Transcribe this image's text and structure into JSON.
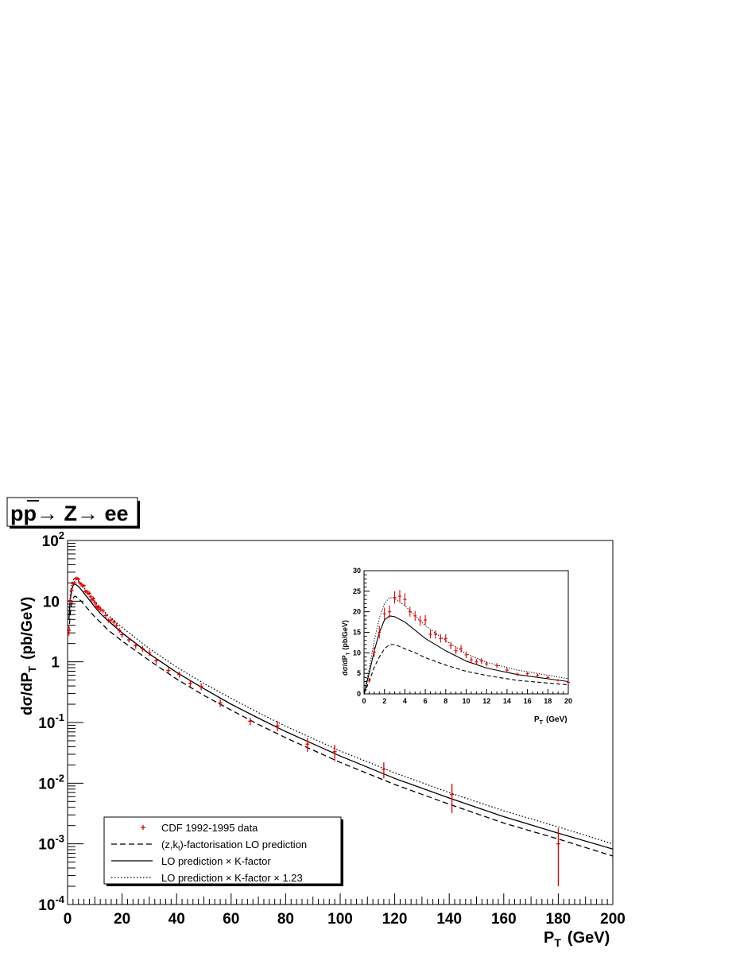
{
  "title": {
    "parts": [
      "p",
      "p",
      "→ Z",
      "→ ee"
    ]
  },
  "colors": {
    "data": "#e00000",
    "line": "#000000",
    "frame": "#000000"
  },
  "chart_data": [
    {
      "type": "scatter",
      "name": "main",
      "xlabel": {
        "main": "P",
        "sub": "T",
        "unit": "(GeV)"
      },
      "ylabel": {
        "main": "dσ/dP",
        "sub": "T",
        "unit": "(pb/GeV)"
      },
      "xlim": [
        0,
        200
      ],
      "ylim": [
        0.0001,
        100
      ],
      "yscale": "log",
      "grid": false,
      "legend_placement": "bottom-left",
      "xticks": [
        0,
        20,
        40,
        60,
        80,
        100,
        120,
        140,
        160,
        180,
        200
      ],
      "yticks": [
        {
          "v": 100,
          "base": "10",
          "exp": "2"
        },
        {
          "v": 10,
          "base": "10",
          "exp": ""
        },
        {
          "v": 1,
          "base": "1",
          "exp": ""
        },
        {
          "v": 0.1,
          "base": "10",
          "exp": "-1"
        },
        {
          "v": 0.01,
          "base": "10",
          "exp": "-2"
        },
        {
          "v": 0.001,
          "base": "10",
          "exp": "-3"
        },
        {
          "v": 0.0001,
          "base": "10",
          "exp": "-4"
        }
      ],
      "legend": [
        {
          "style": "marker",
          "text": "CDF 1992-1995 data"
        },
        {
          "style": "dashed",
          "text": "(z,k",
          "sub": "t",
          "text2": ")-factorisation LO prediction"
        },
        {
          "style": "solid",
          "text": "LO prediction × K-factor"
        },
        {
          "style": "dotted",
          "text": "LO prediction × K-factor × 1.23"
        }
      ],
      "data_points": [
        {
          "x": 0.5,
          "y": 3.3,
          "err": 0.6
        },
        {
          "x": 1.0,
          "y": 10.2,
          "err": 1.2
        },
        {
          "x": 1.5,
          "y": 15,
          "err": 1.5
        },
        {
          "x": 2.0,
          "y": 19.5,
          "err": 1.5
        },
        {
          "x": 2.5,
          "y": 20,
          "err": 1.5
        },
        {
          "x": 3.0,
          "y": 23.5,
          "err": 1.5
        },
        {
          "x": 3.5,
          "y": 23.8,
          "err": 1.5
        },
        {
          "x": 4.0,
          "y": 23,
          "err": 1.5
        },
        {
          "x": 4.5,
          "y": 20,
          "err": 1.2
        },
        {
          "x": 5.0,
          "y": 19,
          "err": 1.2
        },
        {
          "x": 5.5,
          "y": 17.8,
          "err": 1.2
        },
        {
          "x": 6.0,
          "y": 18,
          "err": 1.2
        },
        {
          "x": 6.5,
          "y": 14.5,
          "err": 1.0
        },
        {
          "x": 7.0,
          "y": 14.5,
          "err": 1.0
        },
        {
          "x": 7.5,
          "y": 13.5,
          "err": 1.0
        },
        {
          "x": 8.0,
          "y": 13.5,
          "err": 1.0
        },
        {
          "x": 8.5,
          "y": 11.8,
          "err": 0.9
        },
        {
          "x": 9.0,
          "y": 10.5,
          "err": 0.9
        },
        {
          "x": 9.5,
          "y": 11,
          "err": 0.9
        },
        {
          "x": 10.0,
          "y": 9.5,
          "err": 0.8
        },
        {
          "x": 10.5,
          "y": 8.3,
          "err": 0.8
        },
        {
          "x": 11.0,
          "y": 7.8,
          "err": 0.7
        },
        {
          "x": 11.5,
          "y": 8,
          "err": 0.7
        },
        {
          "x": 12.0,
          "y": 7.3,
          "err": 0.6
        },
        {
          "x": 13.0,
          "y": 6.9,
          "err": 0.6
        },
        {
          "x": 14.0,
          "y": 5.8,
          "err": 0.5
        },
        {
          "x": 15.0,
          "y": 4.8,
          "err": 0.4
        },
        {
          "x": 16.0,
          "y": 4.9,
          "err": 0.4
        },
        {
          "x": 17.0,
          "y": 4.5,
          "err": 0.4
        },
        {
          "x": 18.0,
          "y": 4.0,
          "err": 0.35
        },
        {
          "x": 19.0,
          "y": 3.3,
          "err": 0.3
        },
        {
          "x": 20.0,
          "y": 2.8,
          "err": 0.3
        },
        {
          "x": 22.5,
          "y": 2.3,
          "err": 0.22
        },
        {
          "x": 25,
          "y": 1.85,
          "err": 0.2
        },
        {
          "x": 27.5,
          "y": 1.65,
          "err": 0.18
        },
        {
          "x": 30,
          "y": 1.4,
          "err": 0.15
        },
        {
          "x": 32.5,
          "y": 1.05,
          "err": 0.12
        },
        {
          "x": 37,
          "y": 0.72,
          "err": 0.08
        },
        {
          "x": 41,
          "y": 0.62,
          "err": 0.07
        },
        {
          "x": 45,
          "y": 0.44,
          "err": 0.05
        },
        {
          "x": 49,
          "y": 0.39,
          "err": 0.05
        },
        {
          "x": 56,
          "y": 0.21,
          "err": 0.03
        },
        {
          "x": 67,
          "y": 0.105,
          "err": 0.015
        },
        {
          "x": 77,
          "y": 0.088,
          "err": 0.017
        },
        {
          "x": 88,
          "y": 0.044,
          "err": 0.011
        },
        {
          "x": 98,
          "y": 0.033,
          "err": 0.01
        },
        {
          "x": 116,
          "y": 0.017,
          "err": 0.005
        },
        {
          "x": 141,
          "y": 0.0065,
          "err": 0.0033
        },
        {
          "x": 180,
          "y": 0.001,
          "err": 0.0008
        }
      ],
      "series": [
        {
          "style": "dashed",
          "points": [
            [
              0.5,
              3
            ],
            [
              1,
              6.5
            ],
            [
              1.5,
              9
            ],
            [
              2,
              11
            ],
            [
              2.5,
              12
            ],
            [
              3,
              12
            ],
            [
              4,
              11
            ],
            [
              5,
              10
            ],
            [
              6,
              8.8
            ],
            [
              8,
              7
            ],
            [
              10,
              5.5
            ],
            [
              12,
              4.5
            ],
            [
              15,
              3.3
            ],
            [
              20,
              2.2
            ],
            [
              30,
              1.05
            ],
            [
              40,
              0.52
            ],
            [
              50,
              0.28
            ],
            [
              60,
              0.16
            ],
            [
              70,
              0.093
            ],
            [
              80,
              0.056
            ],
            [
              100,
              0.022
            ],
            [
              120,
              0.0095
            ],
            [
              140,
              0.0045
            ],
            [
              160,
              0.0022
            ],
            [
              180,
              0.0012
            ],
            [
              200,
              0.00063
            ]
          ]
        },
        {
          "style": "solid",
          "points": [
            [
              0.5,
              5
            ],
            [
              1,
              10.5
            ],
            [
              1.5,
              15
            ],
            [
              2,
              18
            ],
            [
              2.5,
              19
            ],
            [
              3,
              18.8
            ],
            [
              4,
              17.5
            ],
            [
              5,
              15.5
            ],
            [
              6,
              13.5
            ],
            [
              8,
              10.5
            ],
            [
              10,
              8
            ],
            [
              12,
              6.3
            ],
            [
              15,
              4.7
            ],
            [
              20,
              3.0
            ],
            [
              30,
              1.35
            ],
            [
              40,
              0.67
            ],
            [
              50,
              0.36
            ],
            [
              60,
              0.2
            ],
            [
              70,
              0.118
            ],
            [
              80,
              0.071
            ],
            [
              100,
              0.028
            ],
            [
              120,
              0.012
            ],
            [
              140,
              0.0057
            ],
            [
              160,
              0.0028
            ],
            [
              180,
              0.0015
            ],
            [
              200,
              0.00082
            ]
          ]
        },
        {
          "style": "dotted",
          "points": [
            [
              0.5,
              6
            ],
            [
              1,
              13
            ],
            [
              1.5,
              18.5
            ],
            [
              2,
              22
            ],
            [
              2.5,
              23.5
            ],
            [
              3,
              23.2
            ],
            [
              4,
              21.5
            ],
            [
              5,
              19
            ],
            [
              6,
              16.6
            ],
            [
              8,
              13
            ],
            [
              10,
              9.8
            ],
            [
              12,
              7.7
            ],
            [
              15,
              5.8
            ],
            [
              20,
              3.7
            ],
            [
              30,
              1.65
            ],
            [
              40,
              0.82
            ],
            [
              50,
              0.44
            ],
            [
              60,
              0.25
            ],
            [
              70,
              0.145
            ],
            [
              80,
              0.087
            ],
            [
              100,
              0.034
            ],
            [
              120,
              0.0148
            ],
            [
              140,
              0.007
            ],
            [
              160,
              0.0035
            ],
            [
              180,
              0.0019
            ],
            [
              200,
              0.001
            ]
          ]
        }
      ]
    },
    {
      "type": "scatter",
      "name": "inset",
      "xlabel": {
        "main": "P",
        "sub": "T",
        "unit": "(GeV)"
      },
      "ylabel": {
        "main": "dσ/dP",
        "sub": "T",
        "unit": "(pb/GeV)"
      },
      "xlim": [
        0,
        20
      ],
      "ylim": [
        0,
        30
      ],
      "yscale": "linear",
      "xticks": [
        0,
        2,
        4,
        6,
        8,
        10,
        12,
        14,
        16,
        18,
        20
      ],
      "yticks": [
        0,
        5,
        10,
        15,
        20,
        25,
        30
      ]
    }
  ]
}
